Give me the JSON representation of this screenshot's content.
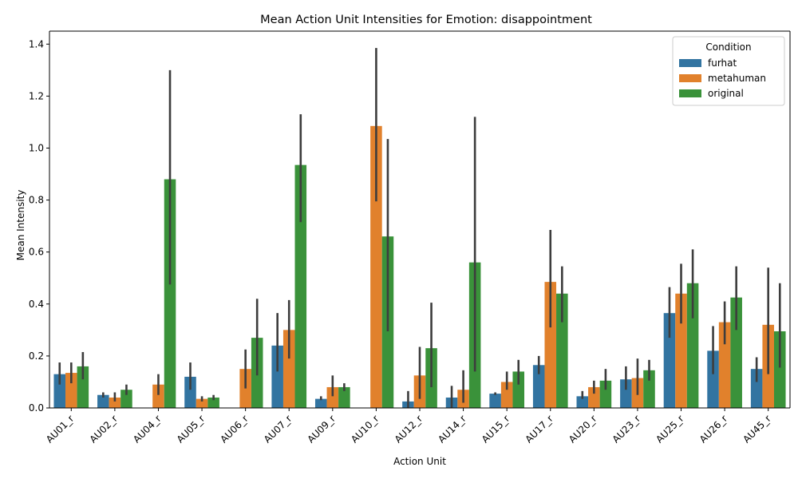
{
  "chart_data": {
    "type": "bar",
    "title": "Mean Action Unit Intensities for Emotion: disappointment",
    "xlabel": "Action Unit",
    "ylabel": "Mean Intensity",
    "ylim": [
      0,
      1.45
    ],
    "yticks": [
      "0.0",
      "0.2",
      "0.4",
      "0.6",
      "0.8",
      "1.0",
      "1.2",
      "1.4"
    ],
    "legend": {
      "title": "Condition",
      "placement": "top-right"
    },
    "categories": [
      "AU01_r",
      "AU02_r",
      "AU04_r",
      "AU05_r",
      "AU06_r",
      "AU07_r",
      "AU09_r",
      "AU10_r",
      "AU12_r",
      "AU14_r",
      "AU15_r",
      "AU17_r",
      "AU20_r",
      "AU23_r",
      "AU25_r",
      "AU26_r",
      "AU45_r"
    ],
    "series": [
      {
        "name": "furhat",
        "color": "#3274a1",
        "values": [
          0.13,
          0.05,
          0.0,
          0.12,
          0.0,
          0.24,
          0.035,
          0.0,
          0.025,
          0.04,
          0.055,
          0.165,
          0.045,
          0.11,
          0.365,
          0.22,
          0.15
        ],
        "err_low": [
          0.09,
          0.04,
          0.0,
          0.07,
          0.0,
          0.14,
          0.03,
          0.0,
          0.0,
          0.0,
          0.05,
          0.13,
          0.035,
          0.07,
          0.27,
          0.13,
          0.1
        ],
        "err_high": [
          0.175,
          0.06,
          0.0,
          0.175,
          0.0,
          0.365,
          0.045,
          0.0,
          0.065,
          0.085,
          0.06,
          0.2,
          0.065,
          0.16,
          0.465,
          0.315,
          0.195
        ]
      },
      {
        "name": "metahuman",
        "color": "#e1812c",
        "values": [
          0.135,
          0.04,
          0.09,
          0.035,
          0.15,
          0.3,
          0.08,
          1.085,
          0.125,
          0.07,
          0.1,
          0.485,
          0.08,
          0.115,
          0.44,
          0.33,
          0.32
        ],
        "err_low": [
          0.095,
          0.025,
          0.05,
          0.025,
          0.075,
          0.19,
          0.045,
          0.795,
          0.035,
          0.02,
          0.07,
          0.31,
          0.055,
          0.05,
          0.325,
          0.245,
          0.13
        ],
        "err_high": [
          0.175,
          0.06,
          0.13,
          0.045,
          0.225,
          0.415,
          0.125,
          1.385,
          0.235,
          0.145,
          0.14,
          0.685,
          0.105,
          0.19,
          0.555,
          0.41,
          0.54
        ]
      },
      {
        "name": "original",
        "color": "#3a923a",
        "values": [
          0.16,
          0.07,
          0.88,
          0.04,
          0.27,
          0.935,
          0.08,
          0.66,
          0.23,
          0.56,
          0.14,
          0.44,
          0.105,
          0.145,
          0.48,
          0.425,
          0.295
        ],
        "err_low": [
          0.11,
          0.05,
          0.475,
          0.03,
          0.125,
          0.715,
          0.065,
          0.295,
          0.08,
          0.14,
          0.09,
          0.33,
          0.07,
          0.105,
          0.345,
          0.3,
          0.155
        ],
        "err_high": [
          0.215,
          0.09,
          1.3,
          0.05,
          0.42,
          1.13,
          0.095,
          1.035,
          0.405,
          1.12,
          0.185,
          0.545,
          0.15,
          0.185,
          0.61,
          0.545,
          0.48
        ]
      }
    ]
  }
}
